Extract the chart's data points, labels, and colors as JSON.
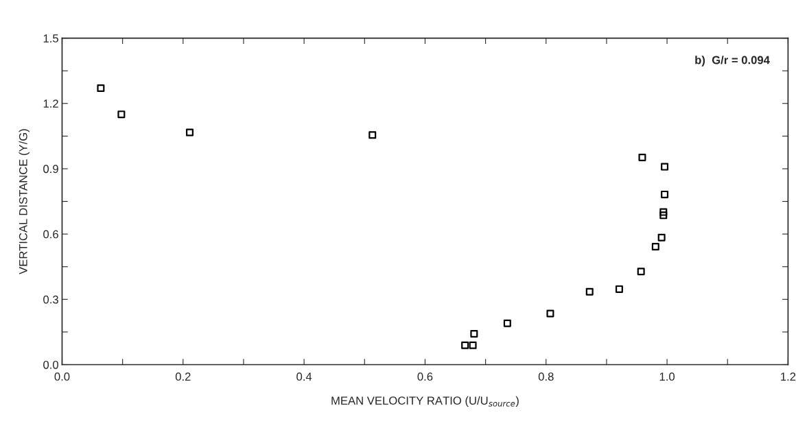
{
  "chart_data": {
    "type": "scatter",
    "xlabel": "MEAN VELOCITY RATIO (U/U$_{source}$)",
    "ylabel": "VERTICAL DISTANCE (Y/G)",
    "annotations": [
      "b)  G/r = 0.094"
    ],
    "x": [
      0.064,
      0.098,
      0.211,
      0.513,
      0.959,
      0.996,
      0.996,
      0.994,
      0.994,
      0.991,
      0.981,
      0.957,
      0.921,
      0.872,
      0.807,
      0.736,
      0.681,
      0.666,
      0.674,
      0.679
    ],
    "values": [
      1.27,
      1.15,
      1.067,
      1.055,
      0.952,
      0.909,
      0.782,
      0.701,
      0.686,
      0.584,
      0.542,
      0.428,
      0.347,
      0.335,
      0.235,
      0.19,
      0.142,
      0.089,
      null,
      0.089
    ],
    "color": "#000000",
    "marker": "square",
    "xlim": [
      0.0,
      1.2
    ],
    "ylim": [
      0.0,
      1.5
    ],
    "xticks": [
      {
        "value": 0.0,
        "label": "0.0"
      },
      {
        "value": 0.1,
        "label": null
      },
      {
        "value": 0.2,
        "label": "0.2"
      },
      {
        "value": 0.3,
        "label": null
      },
      {
        "value": 0.4,
        "label": "0.4"
      },
      {
        "value": 0.5,
        "label": null
      },
      {
        "value": 0.6,
        "label": "0.6"
      },
      {
        "value": 0.7,
        "label": null
      },
      {
        "value": 0.8,
        "label": "0.8"
      },
      {
        "value": 0.9,
        "label": null
      },
      {
        "value": 1.0,
        "label": "1.0"
      },
      {
        "value": 1.1,
        "label": null
      },
      {
        "value": 1.2,
        "label": "1.2"
      }
    ],
    "yticks": [
      {
        "value": 0.0,
        "label": "0.0"
      },
      {
        "value": 0.15,
        "label": null
      },
      {
        "value": 0.3,
        "label": "0.3"
      },
      {
        "value": 0.45,
        "label": null
      },
      {
        "value": 0.6,
        "label": "0.6"
      },
      {
        "value": 0.75,
        "label": null
      },
      {
        "value": 0.9,
        "label": "0.9"
      },
      {
        "value": 1.05,
        "label": null
      },
      {
        "value": 1.2,
        "label": "1.2"
      },
      {
        "value": 1.35,
        "label": null
      },
      {
        "value": 1.5,
        "label": "1.5"
      }
    ],
    "grid": false,
    "legend": false
  }
}
